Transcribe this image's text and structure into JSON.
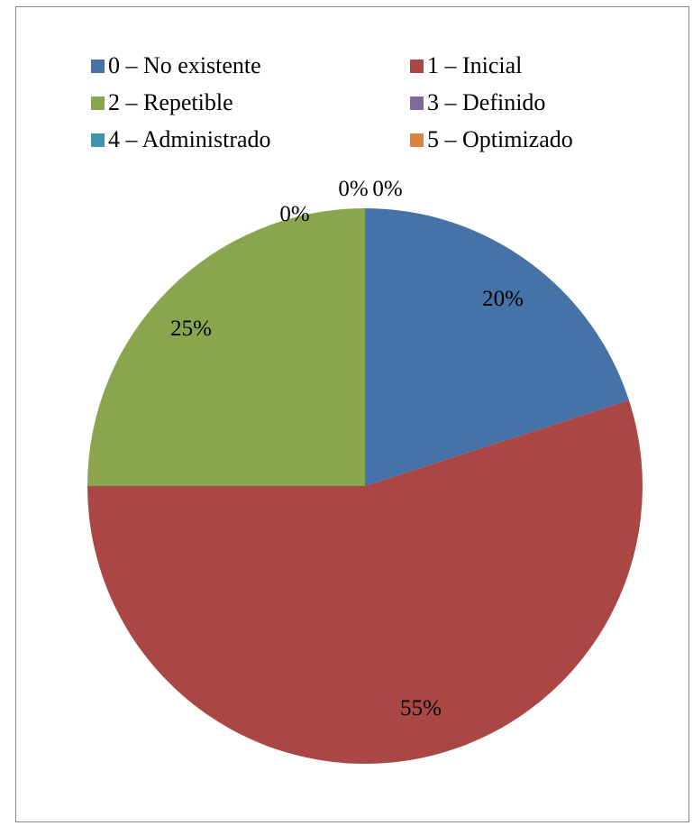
{
  "chart_data": {
    "type": "pie",
    "categories": [
      "0 – No existente",
      "1 – Inicial",
      "2 – Repetible",
      "3 – Definido",
      "4 – Administrado",
      "5 – Optimizado"
    ],
    "values": [
      20,
      55,
      25,
      0,
      0,
      0
    ],
    "data_labels": [
      "20%",
      "55%",
      "25%",
      "0%",
      "0%",
      "0%"
    ],
    "colors": [
      "#4572A7",
      "#AA4643",
      "#89A54E",
      "#80699B",
      "#3D96AE",
      "#DB843D"
    ],
    "legend_position": "top",
    "start_angle_deg": 0,
    "direction": "clockwise"
  }
}
